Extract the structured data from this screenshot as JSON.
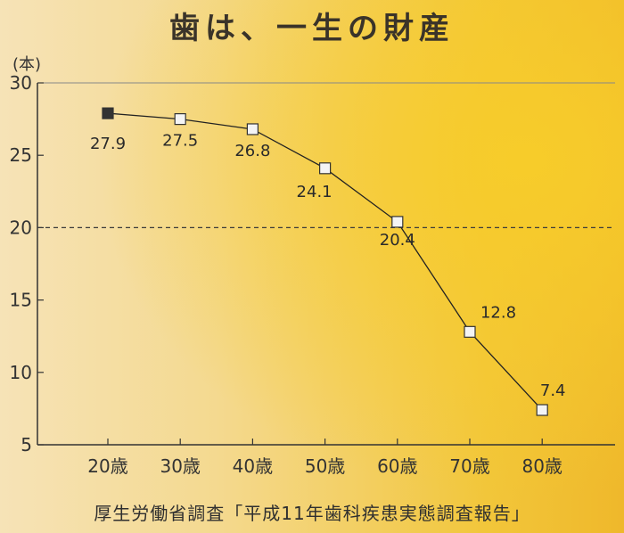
{
  "chart_data": {
    "type": "line",
    "title": "歯は、一生の財産",
    "unit": "(本)",
    "categories": [
      "20歳",
      "30歳",
      "40歳",
      "50歳",
      "60歳",
      "70歳",
      "80歳"
    ],
    "values": [
      27.9,
      27.5,
      26.8,
      24.1,
      20.4,
      12.8,
      7.4
    ],
    "data_labels": [
      "27.9",
      "27.5",
      "26.8",
      "24.1",
      "20.4",
      "12.8",
      "7.4"
    ],
    "yticks": [
      "30",
      "25",
      "20",
      "15",
      "10",
      "5"
    ],
    "ylim": [
      5,
      30
    ],
    "reference_line": 20,
    "grid": false,
    "legend": "none"
  },
  "footer": {
    "source": "厚生労働省調査「平成11年歯科疾患実態調査報告」"
  },
  "colors": {
    "line": "#222222",
    "first_marker_fill": "#333333",
    "marker_fill": "#f4f4f4",
    "reference_line": "#3a3a3a"
  }
}
